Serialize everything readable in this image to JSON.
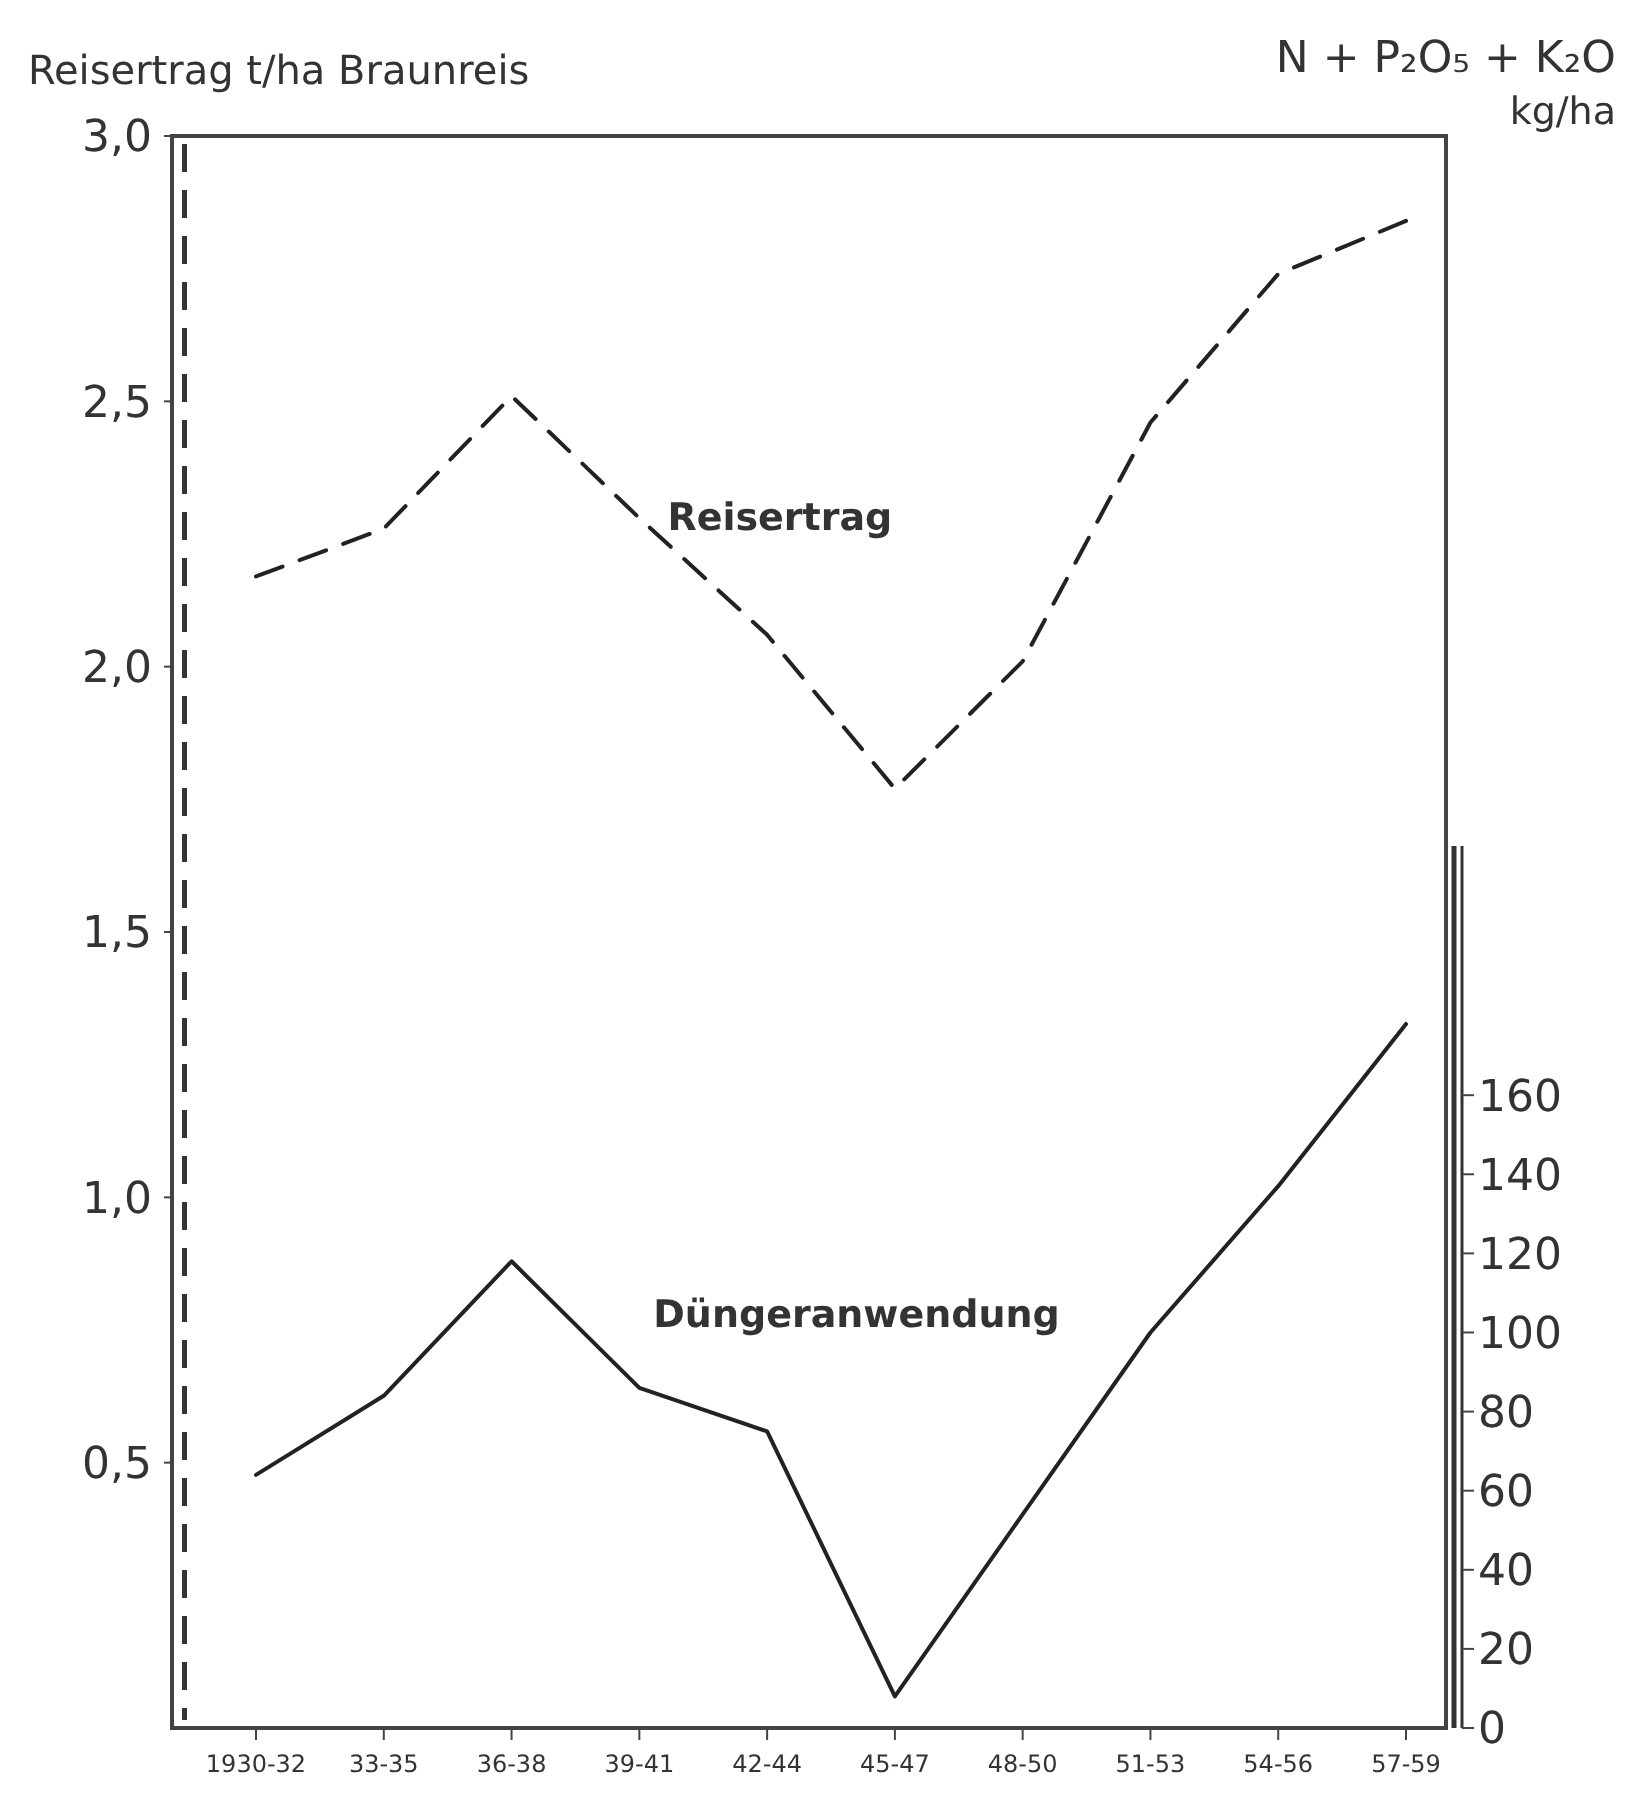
{
  "chart_data": {
    "type": "line",
    "ylabel": "Reisertrag t/ha Braunreis",
    "y2label": "N + P₂O₅ + K₂O\nkg/ha",
    "categories": [
      "1930-32",
      "33-35",
      "36-38",
      "39-41",
      "42-44",
      "45-47",
      "48-50",
      "51-53",
      "54-56",
      "57-59"
    ],
    "series": [
      {
        "name": "Reisertrag",
        "color": "#222222",
        "line_style": "dashed",
        "values": [
          2.17,
          2.26,
          2.51,
          2.28,
          2.06,
          1.77,
          2.01,
          2.46,
          2.74,
          2.84
        ]
      },
      {
        "name": "Düngeranwendung",
        "color": "#222222",
        "line_style": "solid",
        "axis": "y2",
        "values": [
          64,
          84,
          118,
          86,
          75,
          8,
          54,
          100,
          137,
          178
        ]
      }
    ],
    "ylim": [
      0,
      3.0
    ],
    "yticks": [
      {
        "value": 0.5,
        "label": "0,5"
      },
      {
        "value": 1.0,
        "label": "1,0"
      },
      {
        "value": 1.5,
        "label": "1,5"
      },
      {
        "value": 2.0,
        "label": "2,0"
      },
      {
        "value": 2.5,
        "label": "2,5"
      },
      {
        "value": 3.0,
        "label": "3,0"
      }
    ],
    "y2lim": [
      0,
      223
    ],
    "y2ticks": [
      0,
      20,
      40,
      60,
      80,
      100,
      120,
      140,
      160
    ],
    "grid": false,
    "marker": "none"
  }
}
